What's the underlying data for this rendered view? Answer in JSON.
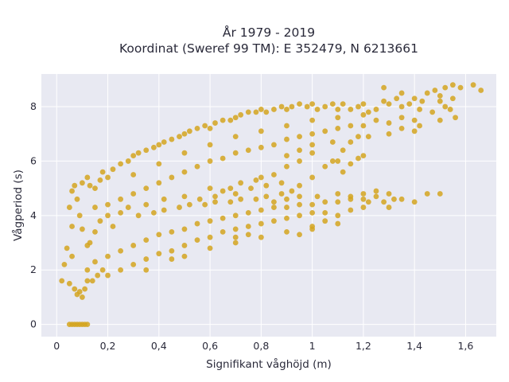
{
  "chart_data": {
    "type": "scatter",
    "title_line1": "År 1979 - 2019",
    "title_line2": "Koordinat (Sweref 99 TM): E 352479, N 6213661",
    "xlabel": "Signifikant våghöjd (m)",
    "ylabel": "Vågperiod (s)",
    "xlim": [
      -0.06,
      1.72
    ],
    "ylim": [
      -0.45,
      9.2
    ],
    "xticks": [
      {
        "value": 0,
        "label": "0"
      },
      {
        "value": 0.2,
        "label": "0,2"
      },
      {
        "value": 0.4,
        "label": "0,4"
      },
      {
        "value": 0.6,
        "label": "0,6"
      },
      {
        "value": 0.8,
        "label": "0,8"
      },
      {
        "value": 1.0,
        "label": "1"
      },
      {
        "value": 1.2,
        "label": "1,2"
      },
      {
        "value": 1.4,
        "label": "1,4"
      },
      {
        "value": 1.6,
        "label": "1,6"
      }
    ],
    "yticks": [
      {
        "value": 0,
        "label": "0"
      },
      {
        "value": 2,
        "label": "2"
      },
      {
        "value": 4,
        "label": "4"
      },
      {
        "value": 6,
        "label": "6"
      },
      {
        "value": 8,
        "label": "8"
      }
    ],
    "grid": true,
    "legend": "none",
    "colors": {
      "marker": "#D4A420",
      "plot_bg": "#E8E9F2",
      "grid": "#ffffff",
      "text": "#2a2a3a"
    },
    "series": [
      {
        "points": [
          [
            0.05,
            0
          ],
          [
            0.06,
            0
          ],
          [
            0.07,
            0
          ],
          [
            0.08,
            0
          ],
          [
            0.09,
            0
          ],
          [
            0.1,
            0
          ],
          [
            0.11,
            0
          ],
          [
            0.12,
            0
          ],
          [
            0.02,
            1.6
          ],
          [
            0.03,
            2.2
          ],
          [
            0.04,
            2.8
          ],
          [
            0.05,
            1.5
          ],
          [
            0.06,
            3.6
          ],
          [
            0.05,
            4.3
          ],
          [
            0.06,
            4.9
          ],
          [
            0.07,
            5.1
          ],
          [
            0.08,
            4.6
          ],
          [
            0.06,
            2.5
          ],
          [
            0.07,
            1.3
          ],
          [
            0.08,
            1.1
          ],
          [
            0.09,
            1.2
          ],
          [
            0.1,
            1.0
          ],
          [
            0.11,
            1.3
          ],
          [
            0.12,
            1.6
          ],
          [
            0.12,
            2.9
          ],
          [
            0.1,
            3.5
          ],
          [
            0.09,
            4.0
          ],
          [
            0.1,
            5.2
          ],
          [
            0.12,
            5.4
          ],
          [
            0.13,
            5.1
          ],
          [
            0.15,
            5.0
          ],
          [
            0.17,
            5.3
          ],
          [
            0.18,
            5.6
          ],
          [
            0.2,
            5.4
          ],
          [
            0.22,
            5.7
          ],
          [
            0.25,
            5.9
          ],
          [
            0.28,
            6.0
          ],
          [
            0.3,
            6.2
          ],
          [
            0.32,
            6.3
          ],
          [
            0.35,
            6.4
          ],
          [
            0.38,
            6.5
          ],
          [
            0.4,
            6.6
          ],
          [
            0.42,
            6.7
          ],
          [
            0.45,
            6.8
          ],
          [
            0.48,
            6.9
          ],
          [
            0.5,
            7.0
          ],
          [
            0.52,
            7.1
          ],
          [
            0.55,
            7.2
          ],
          [
            0.58,
            7.3
          ],
          [
            0.6,
            7.2
          ],
          [
            0.62,
            7.4
          ],
          [
            0.65,
            7.5
          ],
          [
            0.68,
            7.5
          ],
          [
            0.7,
            7.6
          ],
          [
            0.72,
            7.7
          ],
          [
            0.75,
            7.8
          ],
          [
            0.78,
            7.8
          ],
          [
            0.8,
            7.9
          ],
          [
            0.82,
            7.8
          ],
          [
            0.85,
            7.9
          ],
          [
            0.88,
            8.0
          ],
          [
            0.9,
            7.9
          ],
          [
            0.92,
            8.0
          ],
          [
            0.95,
            8.1
          ],
          [
            0.98,
            8.0
          ],
          [
            1.0,
            8.1
          ],
          [
            1.02,
            7.9
          ],
          [
            1.05,
            8.0
          ],
          [
            1.08,
            8.1
          ],
          [
            1.1,
            7.9
          ],
          [
            1.12,
            8.1
          ],
          [
            1.15,
            7.9
          ],
          [
            1.18,
            8.0
          ],
          [
            1.2,
            8.1
          ],
          [
            1.22,
            7.8
          ],
          [
            1.25,
            7.9
          ],
          [
            1.28,
            8.2
          ],
          [
            1.3,
            8.1
          ],
          [
            1.33,
            8.3
          ],
          [
            1.35,
            8.0
          ],
          [
            1.38,
            8.1
          ],
          [
            1.4,
            8.3
          ],
          [
            1.42,
            7.9
          ],
          [
            1.45,
            8.5
          ],
          [
            1.48,
            8.6
          ],
          [
            1.5,
            8.2
          ],
          [
            1.52,
            8.7
          ],
          [
            1.55,
            8.8
          ],
          [
            1.58,
            8.7
          ],
          [
            1.63,
            8.8
          ],
          [
            1.66,
            8.6
          ],
          [
            1.5,
            8.4
          ],
          [
            1.52,
            8.0
          ],
          [
            1.54,
            7.9
          ],
          [
            1.55,
            8.3
          ],
          [
            1.56,
            7.6
          ],
          [
            1.5,
            7.5
          ],
          [
            1.47,
            7.8
          ],
          [
            1.43,
            8.2
          ],
          [
            1.35,
            8.5
          ],
          [
            1.28,
            8.7
          ],
          [
            0.15,
            4.3
          ],
          [
            0.2,
            4.4
          ],
          [
            0.25,
            4.6
          ],
          [
            0.3,
            4.8
          ],
          [
            0.35,
            5.0
          ],
          [
            0.4,
            5.2
          ],
          [
            0.45,
            5.4
          ],
          [
            0.5,
            5.6
          ],
          [
            0.55,
            5.8
          ],
          [
            0.6,
            6.0
          ],
          [
            0.65,
            6.1
          ],
          [
            0.7,
            6.3
          ],
          [
            0.75,
            6.4
          ],
          [
            0.8,
            6.5
          ],
          [
            0.85,
            6.6
          ],
          [
            0.9,
            6.8
          ],
          [
            0.95,
            6.9
          ],
          [
            1.0,
            7.0
          ],
          [
            1.05,
            7.1
          ],
          [
            1.1,
            7.2
          ],
          [
            1.15,
            7.3
          ],
          [
            1.2,
            7.3
          ],
          [
            1.25,
            7.5
          ],
          [
            1.3,
            7.4
          ],
          [
            1.35,
            7.6
          ],
          [
            1.4,
            7.5
          ],
          [
            0.3,
            5.5
          ],
          [
            0.4,
            5.9
          ],
          [
            0.5,
            6.3
          ],
          [
            0.6,
            6.6
          ],
          [
            0.7,
            6.9
          ],
          [
            0.8,
            7.1
          ],
          [
            0.9,
            7.3
          ],
          [
            1.0,
            7.5
          ],
          [
            1.1,
            7.6
          ],
          [
            1.2,
            7.7
          ],
          [
            0.35,
            4.4
          ],
          [
            0.42,
            4.6
          ],
          [
            0.5,
            4.7
          ],
          [
            0.56,
            4.6
          ],
          [
            0.62,
            4.7
          ],
          [
            0.7,
            4.8
          ],
          [
            0.76,
            5.0
          ],
          [
            0.82,
            5.1
          ],
          [
            0.88,
            5.2
          ],
          [
            0.95,
            5.1
          ],
          [
            1.0,
            5.4
          ],
          [
            1.05,
            5.8
          ],
          [
            1.08,
            6.0
          ],
          [
            1.1,
            6.0
          ],
          [
            1.12,
            5.6
          ],
          [
            1.0,
            6.3
          ],
          [
            0.95,
            6.0
          ],
          [
            0.9,
            5.8
          ],
          [
            0.85,
            5.5
          ],
          [
            0.8,
            5.4
          ],
          [
            0.78,
            5.3
          ],
          [
            0.72,
            5.2
          ],
          [
            0.68,
            5.0
          ],
          [
            0.65,
            4.9
          ],
          [
            0.6,
            5.0
          ],
          [
            0.85,
            4.5
          ],
          [
            0.9,
            4.6
          ],
          [
            0.95,
            4.7
          ],
          [
            1.02,
            4.7
          ],
          [
            1.1,
            4.8
          ],
          [
            1.15,
            4.7
          ],
          [
            1.2,
            4.8
          ],
          [
            1.25,
            4.9
          ],
          [
            1.3,
            4.8
          ],
          [
            0.15,
            2.3
          ],
          [
            0.2,
            2.5
          ],
          [
            0.25,
            2.7
          ],
          [
            0.3,
            2.9
          ],
          [
            0.35,
            3.1
          ],
          [
            0.4,
            3.3
          ],
          [
            0.45,
            3.4
          ],
          [
            0.5,
            3.5
          ],
          [
            0.55,
            3.7
          ],
          [
            0.6,
            3.8
          ],
          [
            0.65,
            3.9
          ],
          [
            0.7,
            4.0
          ],
          [
            0.75,
            4.1
          ],
          [
            0.8,
            4.2
          ],
          [
            0.85,
            4.3
          ],
          [
            0.9,
            4.3
          ],
          [
            0.95,
            4.4
          ],
          [
            1.0,
            4.4
          ],
          [
            1.05,
            4.5
          ],
          [
            1.1,
            4.5
          ],
          [
            1.15,
            4.6
          ],
          [
            1.2,
            4.6
          ],
          [
            1.25,
            4.7
          ],
          [
            0.2,
            1.8
          ],
          [
            0.25,
            2.0
          ],
          [
            0.3,
            2.2
          ],
          [
            0.35,
            2.4
          ],
          [
            0.4,
            2.6
          ],
          [
            0.45,
            2.7
          ],
          [
            0.5,
            2.9
          ],
          [
            0.55,
            3.1
          ],
          [
            0.6,
            3.2
          ],
          [
            0.65,
            3.4
          ],
          [
            0.7,
            3.5
          ],
          [
            0.75,
            3.6
          ],
          [
            0.8,
            3.7
          ],
          [
            0.85,
            3.8
          ],
          [
            0.9,
            3.9
          ],
          [
            0.95,
            4.0
          ],
          [
            1.0,
            4.1
          ],
          [
            1.05,
            4.1
          ],
          [
            0.6,
            2.8
          ],
          [
            0.7,
            3.0
          ],
          [
            0.8,
            3.2
          ],
          [
            0.9,
            3.4
          ],
          [
            1.0,
            3.6
          ],
          [
            1.05,
            3.8
          ],
          [
            1.1,
            4.0
          ],
          [
            1.15,
            4.2
          ],
          [
            1.2,
            4.3
          ],
          [
            1.22,
            4.5
          ],
          [
            1.28,
            4.5
          ],
          [
            1.32,
            4.6
          ],
          [
            1.35,
            4.6
          ],
          [
            1.4,
            4.5
          ],
          [
            1.45,
            4.8
          ],
          [
            1.5,
            4.8
          ],
          [
            1.3,
            4.3
          ],
          [
            0.95,
            3.3
          ],
          [
            1.0,
            3.5
          ],
          [
            1.1,
            3.7
          ],
          [
            0.7,
            3.2
          ],
          [
            0.75,
            3.3
          ],
          [
            0.45,
            2.4
          ],
          [
            0.5,
            2.5
          ],
          [
            0.35,
            2.0
          ],
          [
            0.12,
            2.0
          ],
          [
            0.14,
            1.6
          ],
          [
            0.16,
            1.8
          ],
          [
            0.18,
            2.0
          ],
          [
            0.13,
            3.0
          ],
          [
            0.15,
            3.4
          ],
          [
            0.17,
            3.8
          ],
          [
            0.2,
            4.0
          ],
          [
            0.25,
            4.1
          ],
          [
            0.22,
            3.6
          ],
          [
            0.28,
            4.3
          ],
          [
            0.32,
            4.0
          ],
          [
            0.38,
            4.1
          ],
          [
            0.42,
            4.2
          ],
          [
            0.48,
            4.3
          ],
          [
            0.52,
            4.4
          ],
          [
            0.58,
            4.4
          ],
          [
            0.62,
            4.5
          ],
          [
            0.68,
            4.5
          ],
          [
            0.72,
            4.6
          ],
          [
            0.78,
            4.6
          ],
          [
            0.82,
            4.7
          ],
          [
            0.88,
            4.8
          ],
          [
            0.92,
            4.9
          ],
          [
            1.12,
            6.4
          ],
          [
            1.15,
            6.7
          ],
          [
            1.18,
            6.9
          ],
          [
            1.22,
            6.9
          ],
          [
            1.3,
            7.0
          ],
          [
            1.35,
            7.2
          ],
          [
            1.4,
            7.1
          ],
          [
            1.42,
            7.3
          ],
          [
            1.08,
            6.7
          ],
          [
            1.0,
            6.6
          ],
          [
            0.95,
            6.4
          ],
          [
            0.9,
            6.2
          ],
          [
            1.15,
            5.9
          ],
          [
            1.18,
            6.1
          ],
          [
            1.2,
            6.2
          ]
        ]
      }
    ]
  }
}
